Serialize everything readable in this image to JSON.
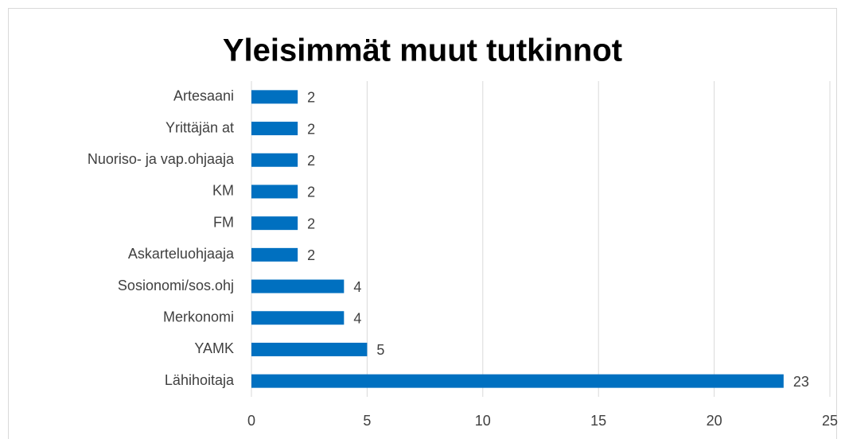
{
  "chart_data": {
    "type": "hbar",
    "title": "Yleisimmät muut tutkinnot",
    "categories": [
      "Artesaani",
      "Yrittäjän at",
      "Nuoriso- ja vap.ohjaaja",
      "KM",
      "FM",
      "Askarteluohjaaja",
      "Sosionomi/sos.ohj",
      "Merkonomi",
      "YAMK",
      "Lähihoitaja"
    ],
    "values": [
      2,
      2,
      2,
      2,
      2,
      2,
      4,
      4,
      5,
      23
    ],
    "color": "#0070c0",
    "xlim": [
      0,
      25
    ],
    "xticks": [
      0,
      5,
      10,
      15,
      20,
      25
    ],
    "grid": true
  }
}
